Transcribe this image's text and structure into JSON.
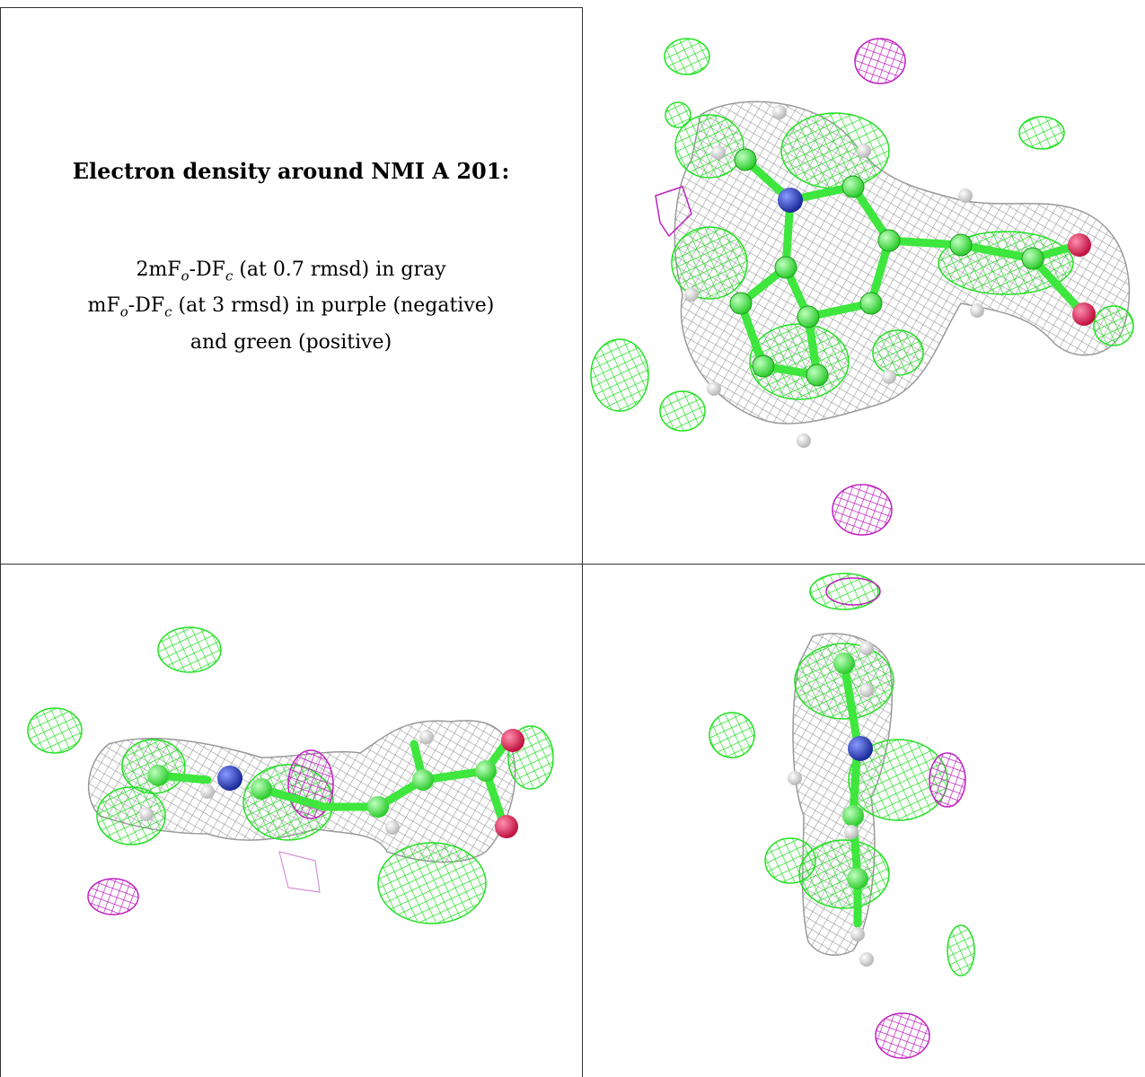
{
  "caption": {
    "title": "Electron density around NMI A 201:",
    "line1": {
      "prefix": "2mF",
      "sub1": "o",
      "mid": "-DF",
      "sub2": "c",
      "suffix": " (at 0.7 rmsd) in gray"
    },
    "line2": {
      "prefix": "mF",
      "sub1": "o",
      "mid": "-DF",
      "sub2": "c",
      "suffix": " (at 3 rmsd) in purple (negative)"
    },
    "line3": "and green (positive)"
  },
  "colors": {
    "gray_mesh": "#a8a8a8",
    "green_mesh": "#33ee33",
    "purple_mesh": "#cc22cc",
    "carbon": "#44ee44",
    "nitrogen": "#3344bb",
    "oxygen": "#ee2255",
    "hydrogen": "#e8e8e8"
  },
  "views": [
    {
      "name": "top-right-view"
    },
    {
      "name": "bottom-left-view"
    },
    {
      "name": "bottom-right-view"
    }
  ]
}
